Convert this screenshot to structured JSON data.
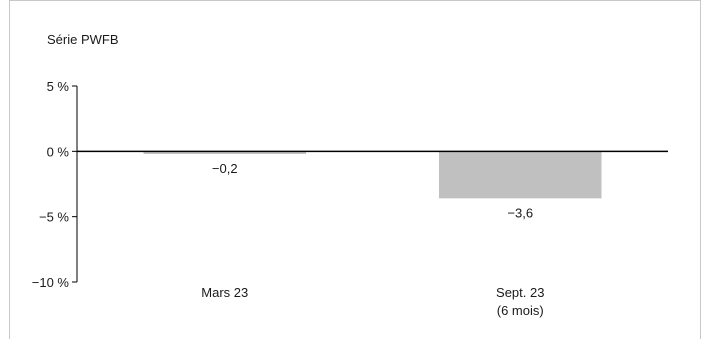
{
  "chart_data": {
    "type": "bar",
    "title": "Série PWFB",
    "categories": [
      [
        "Mars 23"
      ],
      [
        "Sept. 23",
        "(6 mois)"
      ]
    ],
    "values": [
      -0.2,
      -3.6
    ],
    "data_labels": [
      "−0,2",
      "−3,6"
    ],
    "y_ticks": [
      5,
      0,
      -5,
      -10
    ],
    "y_tick_labels": [
      "5 %",
      "0 %",
      "−5 %",
      "−10 %"
    ],
    "ylim": [
      -10,
      5
    ],
    "grid": false,
    "colors": {
      "bar": "#c0c0c0",
      "axis": "#000000",
      "frame": "#c8c8c8"
    }
  }
}
